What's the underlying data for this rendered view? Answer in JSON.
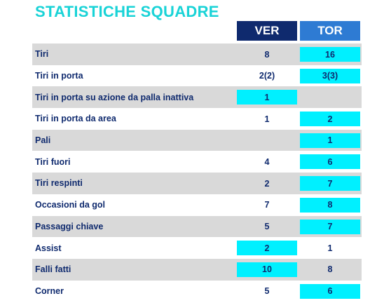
{
  "title": "STATISTICHE SQUADRE",
  "teams": {
    "home": "VER",
    "away": "TOR"
  },
  "highlight_color": "#00f0ff",
  "rows": [
    {
      "label": "Tiri",
      "ver": "8",
      "tor": "16",
      "highlight": "tor"
    },
    {
      "label": "Tiri in porta",
      "ver": "2(2)",
      "tor": "3(3)",
      "highlight": "tor"
    },
    {
      "label": "Tiri in porta su azione da palla inattiva",
      "ver": "1",
      "tor": "",
      "highlight": "ver"
    },
    {
      "label": "Tiri in porta da area",
      "ver": "1",
      "tor": "2",
      "highlight": "tor"
    },
    {
      "label": "Pali",
      "ver": "",
      "tor": "1",
      "highlight": "tor"
    },
    {
      "label": "Tiri fuori",
      "ver": "4",
      "tor": "6",
      "highlight": "tor"
    },
    {
      "label": "Tiri respinti",
      "ver": "2",
      "tor": "7",
      "highlight": "tor"
    },
    {
      "label": "Occasioni da gol",
      "ver": "7",
      "tor": "8",
      "highlight": "tor"
    },
    {
      "label": "Passaggi chiave",
      "ver": "5",
      "tor": "7",
      "highlight": "tor"
    },
    {
      "label": "Assist",
      "ver": "2",
      "tor": "1",
      "highlight": "ver"
    },
    {
      "label": "Falli fatti",
      "ver": "10",
      "tor": "8",
      "highlight": "ver"
    },
    {
      "label": "Corner",
      "ver": "5",
      "tor": "6",
      "highlight": "tor"
    }
  ]
}
